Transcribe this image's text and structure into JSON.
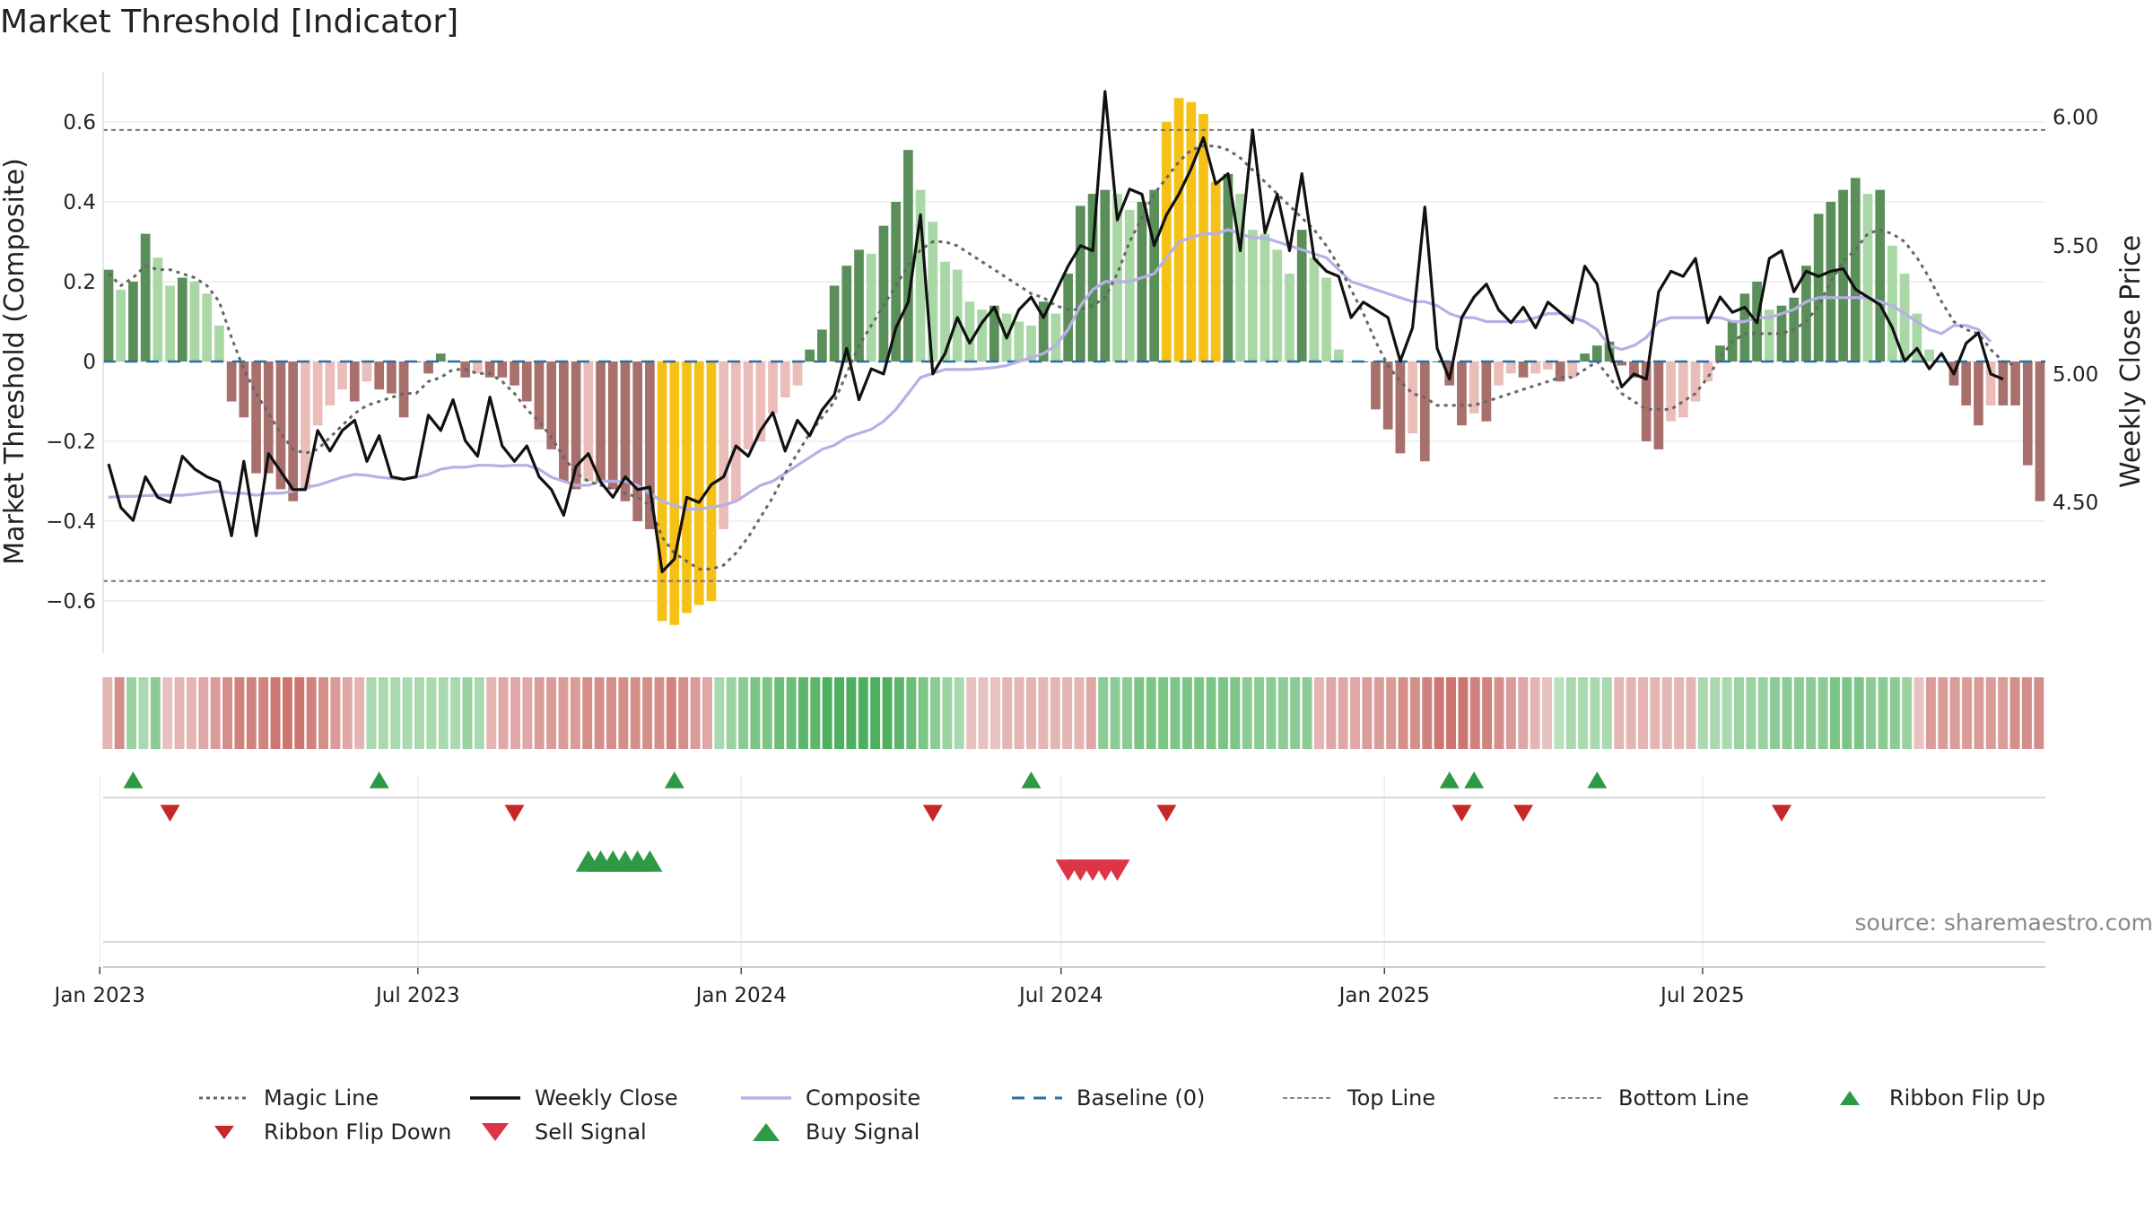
{
  "title": "Market Threshold [Indicator]",
  "source": "source: sharemaestro.com",
  "colors": {
    "pos_light": "#a9d7a5",
    "pos_dark": "#5a8f5a",
    "neg_light": "#eabdb8",
    "neg_dark": "#a8706c",
    "extreme": "#f5c116",
    "close": "#111111",
    "composite": "#b7b0e6",
    "magic": "#666666",
    "baseline": "#2a6fa3",
    "threshold": "#777777",
    "flip_up": "#2e9a46",
    "flip_down": "#c62828",
    "buy": "#2e9a46",
    "sell": "#dc3545"
  },
  "chart_data": {
    "type": "bar",
    "title": "Market Threshold [Indicator]",
    "x_start": "2023-01-06",
    "x_step_days": 7,
    "x_ticks": [
      "Jan 2023",
      "Jul 2023",
      "Jan 2024",
      "Jul 2024",
      "Jan 2025",
      "Jul 2025"
    ],
    "ylabel_left": "Market Threshold (Composite)",
    "ylabel_right": "Weekly Close Price",
    "y_ticks_left": [
      "0.6",
      "0.4",
      "0.2",
      "0",
      "−0.2",
      "−0.4",
      "−0.6"
    ],
    "y_ticks_right": [
      "6.00",
      "5.50",
      "5.00",
      "4.50"
    ],
    "ylim_left": [
      -0.72,
      0.73
    ],
    "ylim_right": [
      4.2,
      6.1
    ],
    "top_line": 0.58,
    "bottom_line": -0.55,
    "grid": true,
    "legend_position": "bottom",
    "histogram": [
      0.23,
      0.18,
      0.2,
      0.32,
      0.26,
      0.19,
      0.21,
      0.2,
      0.17,
      0.09,
      -0.1,
      -0.14,
      -0.28,
      -0.28,
      -0.32,
      -0.35,
      -0.32,
      -0.16,
      -0.11,
      -0.07,
      -0.1,
      -0.05,
      -0.07,
      -0.08,
      -0.14,
      0,
      -0.03,
      0.02,
      0,
      -0.04,
      -0.03,
      -0.04,
      -0.04,
      -0.06,
      -0.1,
      -0.17,
      -0.22,
      -0.3,
      -0.32,
      -0.3,
      -0.3,
      -0.32,
      -0.35,
      -0.4,
      -0.42,
      -0.65,
      -0.66,
      -0.63,
      -0.61,
      -0.6,
      -0.42,
      -0.35,
      -0.22,
      -0.2,
      -0.13,
      -0.09,
      -0.06,
      0.03,
      0.08,
      0.19,
      0.24,
      0.28,
      0.27,
      0.34,
      0.4,
      0.53,
      0.43,
      0.35,
      0.25,
      0.23,
      0.15,
      0.13,
      0.14,
      0.12,
      0.1,
      0.09,
      0.15,
      0.12,
      0.22,
      0.39,
      0.42,
      0.43,
      0.42,
      0.38,
      0.4,
      0.43,
      0.6,
      0.66,
      0.65,
      0.62,
      0.45,
      0.47,
      0.42,
      0.33,
      0.32,
      0.28,
      0.22,
      0.33,
      0.26,
      0.21,
      0.03,
      0,
      0,
      -0.12,
      -0.17,
      -0.23,
      -0.18,
      -0.25,
      0,
      -0.06,
      -0.16,
      -0.13,
      -0.15,
      -0.06,
      -0.03,
      -0.04,
      -0.03,
      -0.02,
      -0.05,
      -0.04,
      0.02,
      0.04,
      0.05,
      -0.01,
      -0.04,
      -0.2,
      -0.22,
      -0.15,
      -0.14,
      -0.1,
      -0.05,
      0.04,
      0.1,
      0.17,
      0.2,
      0.13,
      0.14,
      0.16,
      0.24,
      0.37,
      0.4,
      0.43,
      0.46,
      0.42,
      0.43,
      0.29,
      0.22,
      0.12,
      0.03,
      0,
      -0.06,
      -0.11,
      -0.16,
      -0.11,
      -0.11,
      -0.11,
      -0.26,
      -0.35
    ],
    "extreme_bars": [
      45,
      46,
      47,
      48,
      49,
      86,
      87,
      88,
      89,
      90
    ],
    "series": [
      {
        "name": "Weekly Close",
        "values": [
          4.65,
          4.48,
          4.43,
          4.6,
          4.52,
          4.5,
          4.68,
          4.63,
          4.6,
          4.58,
          4.37,
          4.66,
          4.37,
          4.69,
          4.62,
          4.55,
          4.55,
          4.78,
          4.7,
          4.78,
          4.82,
          4.66,
          4.76,
          4.6,
          4.59,
          4.6,
          4.84,
          4.78,
          4.9,
          4.74,
          4.68,
          4.91,
          4.72,
          4.66,
          4.72,
          4.6,
          4.55,
          4.45,
          4.64,
          4.69,
          4.58,
          4.52,
          4.6,
          4.55,
          4.56,
          4.23,
          4.28,
          4.52,
          4.5,
          4.57,
          4.6,
          4.72,
          4.68,
          4.78,
          4.85,
          4.7,
          4.82,
          4.76,
          4.86,
          4.92,
          5.1,
          4.9,
          5.02,
          5.0,
          5.18,
          5.28,
          5.62,
          5.0,
          5.08,
          5.22,
          5.12,
          5.2,
          5.26,
          5.14,
          5.25,
          5.3,
          5.22,
          5.32,
          5.42,
          5.5,
          5.48,
          6.1,
          5.6,
          5.72,
          5.7,
          5.5,
          5.62,
          5.7,
          5.8,
          5.92,
          5.74,
          5.78,
          5.48,
          5.95,
          5.55,
          5.7,
          5.48,
          5.78,
          5.45,
          5.4,
          5.38,
          5.22,
          5.28,
          5.25,
          5.22,
          5.05,
          5.18,
          5.65,
          5.1,
          4.98,
          5.22,
          5.3,
          5.35,
          5.25,
          5.2,
          5.26,
          5.18,
          5.28,
          5.24,
          5.2,
          5.42,
          5.35,
          5.1,
          4.95,
          5.0,
          4.98,
          5.32,
          5.4,
          5.38,
          5.45,
          5.2,
          5.3,
          5.24,
          5.26,
          5.2,
          5.45,
          5.48,
          5.32,
          5.4,
          5.38,
          5.4,
          5.41,
          5.33,
          5.3,
          5.27,
          5.18,
          5.05,
          5.1,
          5.02,
          5.08,
          5.0,
          5.12,
          5.16,
          5.0,
          4.98
        ]
      },
      {
        "name": "Composite",
        "values": [
          -0.34,
          -0.338,
          -0.338,
          -0.336,
          -0.335,
          -0.335,
          -0.335,
          -0.332,
          -0.328,
          -0.325,
          -0.33,
          -0.33,
          -0.335,
          -0.33,
          -0.33,
          -0.325,
          -0.315,
          -0.31,
          -0.3,
          -0.29,
          -0.283,
          -0.285,
          -0.29,
          -0.293,
          -0.295,
          -0.29,
          -0.283,
          -0.27,
          -0.265,
          -0.265,
          -0.26,
          -0.26,
          -0.262,
          -0.26,
          -0.26,
          -0.27,
          -0.29,
          -0.3,
          -0.31,
          -0.31,
          -0.3,
          -0.3,
          -0.3,
          -0.31,
          -0.33,
          -0.35,
          -0.36,
          -0.37,
          -0.37,
          -0.365,
          -0.36,
          -0.35,
          -0.33,
          -0.31,
          -0.3,
          -0.28,
          -0.26,
          -0.24,
          -0.22,
          -0.21,
          -0.19,
          -0.18,
          -0.17,
          -0.15,
          -0.12,
          -0.08,
          -0.04,
          -0.03,
          -0.02,
          -0.02,
          -0.02,
          -0.018,
          -0.015,
          -0.01,
          0,
          0.01,
          0.02,
          0.04,
          0.08,
          0.14,
          0.18,
          0.2,
          0.2,
          0.2,
          0.21,
          0.22,
          0.26,
          0.3,
          0.31,
          0.32,
          0.32,
          0.33,
          0.32,
          0.31,
          0.31,
          0.3,
          0.29,
          0.28,
          0.27,
          0.26,
          0.23,
          0.2,
          0.19,
          0.18,
          0.17,
          0.16,
          0.15,
          0.15,
          0.14,
          0.12,
          0.11,
          0.11,
          0.1,
          0.1,
          0.1,
          0.1,
          0.11,
          0.12,
          0.12,
          0.11,
          0.1,
          0.08,
          0.04,
          0.03,
          0.04,
          0.06,
          0.1,
          0.11,
          0.11,
          0.11,
          0.11,
          0.11,
          0.1,
          0.1,
          0.11,
          0.11,
          0.12,
          0.13,
          0.15,
          0.16,
          0.16,
          0.16,
          0.16,
          0.16,
          0.15,
          0.14,
          0.12,
          0.1,
          0.08,
          0.07,
          0.09,
          0.09,
          0.08,
          0.05
        ]
      },
      {
        "name": "Magic Line",
        "values": [
          0.22,
          0.19,
          0.21,
          0.24,
          0.23,
          0.23,
          0.22,
          0.21,
          0.19,
          0.15,
          0.06,
          -0.02,
          -0.08,
          -0.13,
          -0.18,
          -0.22,
          -0.23,
          -0.22,
          -0.19,
          -0.16,
          -0.13,
          -0.11,
          -0.1,
          -0.09,
          -0.08,
          -0.08,
          -0.05,
          -0.04,
          -0.02,
          -0.02,
          -0.03,
          -0.03,
          -0.05,
          -0.08,
          -0.12,
          -0.15,
          -0.19,
          -0.24,
          -0.28,
          -0.3,
          -0.31,
          -0.32,
          -0.33,
          -0.34,
          -0.36,
          -0.44,
          -0.48,
          -0.5,
          -0.52,
          -0.52,
          -0.51,
          -0.48,
          -0.44,
          -0.39,
          -0.34,
          -0.28,
          -0.23,
          -0.18,
          -0.14,
          -0.1,
          -0.03,
          0.04,
          0.09,
          0.14,
          0.19,
          0.24,
          0.28,
          0.3,
          0.3,
          0.29,
          0.27,
          0.25,
          0.23,
          0.21,
          0.19,
          0.17,
          0.16,
          0.14,
          0.13,
          0.13,
          0.14,
          0.16,
          0.22,
          0.3,
          0.36,
          0.42,
          0.46,
          0.5,
          0.53,
          0.54,
          0.54,
          0.53,
          0.51,
          0.48,
          0.45,
          0.42,
          0.39,
          0.36,
          0.33,
          0.29,
          0.24,
          0.18,
          0.12,
          0.05,
          -0.01,
          -0.05,
          -0.08,
          -0.09,
          -0.11,
          -0.11,
          -0.11,
          -0.11,
          -0.1,
          -0.09,
          -0.08,
          -0.07,
          -0.06,
          -0.05,
          -0.04,
          -0.04,
          -0.02,
          0,
          -0.04,
          -0.08,
          -0.1,
          -0.12,
          -0.12,
          -0.12,
          -0.1,
          -0.08,
          -0.04,
          0.01,
          0.05,
          0.07,
          0.07,
          0.07,
          0.07,
          0.08,
          0.1,
          0.14,
          0.2,
          0.25,
          0.28,
          0.32,
          0.33,
          0.32,
          0.3,
          0.26,
          0.21,
          0.15,
          0.1,
          0.08,
          0.07,
          0.03,
          0,
          -0.01
        ]
      }
    ],
    "ribbon": [
      -0.3,
      -0.6,
      0.4,
      0.3,
      0.5,
      -0.2,
      -0.3,
      -0.3,
      -0.4,
      -0.5,
      -0.6,
      -0.7,
      -0.7,
      -0.7,
      -0.8,
      -0.8,
      -0.8,
      -0.7,
      -0.6,
      -0.5,
      -0.4,
      -0.3,
      0.3,
      0.3,
      0.3,
      0.3,
      0.3,
      0.3,
      0.3,
      0.3,
      0.4,
      0.3,
      -0.3,
      -0.4,
      -0.4,
      -0.4,
      -0.5,
      -0.5,
      -0.5,
      -0.5,
      -0.6,
      -0.6,
      -0.6,
      -0.6,
      -0.6,
      -0.6,
      -0.6,
      -0.7,
      -0.6,
      -0.5,
      -0.4,
      0.3,
      0.4,
      0.5,
      0.6,
      0.6,
      0.7,
      0.7,
      0.8,
      0.8,
      0.9,
      0.9,
      0.9,
      0.9,
      0.9,
      0.9,
      0.8,
      0.7,
      0.6,
      0.5,
      0.4,
      0.3,
      -0.2,
      -0.2,
      -0.2,
      -0.3,
      -0.3,
      -0.3,
      -0.3,
      -0.3,
      -0.3,
      -0.3,
      -0.4,
      0.5,
      0.5,
      0.5,
      0.6,
      0.6,
      0.6,
      0.6,
      0.6,
      0.6,
      0.6,
      0.6,
      0.6,
      0.5,
      0.5,
      0.5,
      0.5,
      0.5,
      0.5,
      -0.3,
      -0.4,
      -0.4,
      -0.4,
      -0.5,
      -0.5,
      -0.5,
      -0.6,
      -0.6,
      -0.7,
      -0.8,
      -0.8,
      -0.8,
      -0.7,
      -0.7,
      -0.6,
      -0.5,
      -0.4,
      -0.3,
      -0.2,
      0.2,
      0.3,
      0.3,
      0.3,
      0.3,
      -0.3,
      -0.3,
      -0.3,
      -0.3,
      -0.3,
      -0.3,
      -0.3,
      0.3,
      0.3,
      0.3,
      0.4,
      0.4,
      0.4,
      0.5,
      0.5,
      0.5,
      0.5,
      0.5,
      0.6,
      0.6,
      0.6,
      0.5,
      0.5,
      0.5,
      0.4,
      -0.2,
      -0.5,
      -0.5,
      -0.5,
      -0.5,
      -0.5,
      -0.5,
      -0.5,
      -0.6,
      -0.6,
      -0.6
    ],
    "events": {
      "ribbon_flip_up": [
        "2023-01-20",
        "2023-06-09",
        "2023-11-24",
        "2024-06-14",
        "2025-02-07",
        "2025-02-21",
        "2025-05-02"
      ],
      "ribbon_flip_down": [
        "2023-02-10",
        "2023-08-25",
        "2024-04-19",
        "2024-08-30",
        "2025-02-14",
        "2025-03-21",
        "2025-08-15"
      ],
      "buy_signal": [
        "2023-10-06",
        "2023-10-13",
        "2023-10-20",
        "2023-10-27",
        "2023-11-03",
        "2023-11-10"
      ],
      "sell_signal": [
        "2024-07-05",
        "2024-07-12",
        "2024-07-19",
        "2024-07-26",
        "2024-08-02"
      ]
    }
  },
  "legend": [
    {
      "key": "magic",
      "label": "Magic Line"
    },
    {
      "key": "close",
      "label": "Weekly Close"
    },
    {
      "key": "composite",
      "label": "Composite"
    },
    {
      "key": "baseline",
      "label": "Baseline (0)"
    },
    {
      "key": "top",
      "label": "Top Line"
    },
    {
      "key": "bottom",
      "label": "Bottom Line"
    },
    {
      "key": "flipup",
      "label": "Ribbon Flip Up"
    },
    {
      "key": "flipdown",
      "label": "Ribbon Flip Down"
    },
    {
      "key": "sell",
      "label": "Sell Signal"
    },
    {
      "key": "buy",
      "label": "Buy Signal"
    }
  ]
}
